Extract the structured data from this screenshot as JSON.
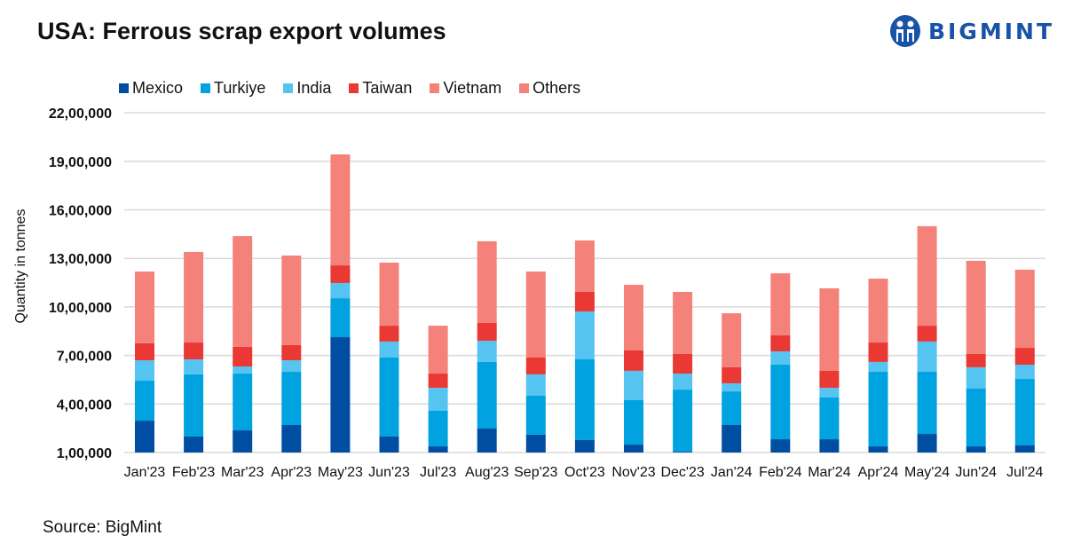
{
  "title": "USA: Ferrous scrap export volumes",
  "logo_text": "BIGMINT",
  "source": "Source: BigMint",
  "chart_data": {
    "type": "bar",
    "stacked": true,
    "title": "USA: Ferrous scrap export volumes",
    "xlabel": "",
    "ylabel": "Quantity in tonnes",
    "ylim": [
      100000,
      2200000
    ],
    "yticks": [
      100000,
      400000,
      700000,
      1000000,
      1300000,
      1600000,
      1900000,
      2200000
    ],
    "ytick_labels": [
      "1,00,000",
      "4,00,000",
      "7,00,000",
      "10,00,000",
      "13,00,000",
      "16,00,000",
      "19,00,000",
      "22,00,000"
    ],
    "grid": true,
    "legend_position": "top",
    "categories": [
      "Jan'23",
      "Feb'23",
      "Mar'23",
      "Apr'23",
      "May'23",
      "Jun'23",
      "Jul'23",
      "Aug'23",
      "Sep'23",
      "Oct'23",
      "Nov'23",
      "Dec'23",
      "Jan'24",
      "Feb'24",
      "Mar'24",
      "Apr'24",
      "May'24",
      "Jun'24",
      "Jul'24"
    ],
    "series": [
      {
        "name": "Mexico",
        "color": "#004EA2",
        "values": [
          297000,
          199000,
          237000,
          270000,
          813000,
          199000,
          138000,
          248000,
          210000,
          177000,
          149000,
          105000,
          270000,
          182000,
          182000,
          138000,
          215000,
          138000,
          144000
        ]
      },
      {
        "name": "Turkiye",
        "color": "#00A3DF",
        "values": [
          247000,
          384000,
          351000,
          329000,
          241000,
          488000,
          220000,
          412000,
          241000,
          499000,
          275000,
          384000,
          208000,
          461000,
          258000,
          461000,
          384000,
          357000,
          411000
        ]
      },
      {
        "name": "India",
        "color": "#56C4F1",
        "values": [
          126000,
          93000,
          44000,
          71000,
          94000,
          99000,
          142000,
          131000,
          132000,
          296000,
          181000,
          99000,
          50000,
          82000,
          60000,
          61000,
          187000,
          132000,
          88000
        ]
      },
      {
        "name": "Taiwan",
        "color": "#EA3834",
        "values": [
          105000,
          104000,
          121000,
          94000,
          109000,
          98000,
          88000,
          110000,
          104000,
          121000,
          126000,
          121000,
          99000,
          99000,
          105000,
          120000,
          98000,
          82000,
          104000
        ]
      },
      {
        "name": "Vietnam",
        "color": "#F4827A",
        "values": [
          0,
          0,
          0,
          0,
          0,
          0,
          0,
          0,
          0,
          0,
          0,
          0,
          0,
          0,
          0,
          0,
          0,
          0,
          0
        ]
      },
      {
        "name": "Others",
        "color": "#F4827A",
        "values": [
          444000,
          560000,
          685000,
          554000,
          686000,
          390000,
          296000,
          505000,
          532000,
          318000,
          406000,
          384000,
          334000,
          384000,
          510000,
          395000,
          615000,
          576000,
          483000
        ]
      }
    ]
  }
}
